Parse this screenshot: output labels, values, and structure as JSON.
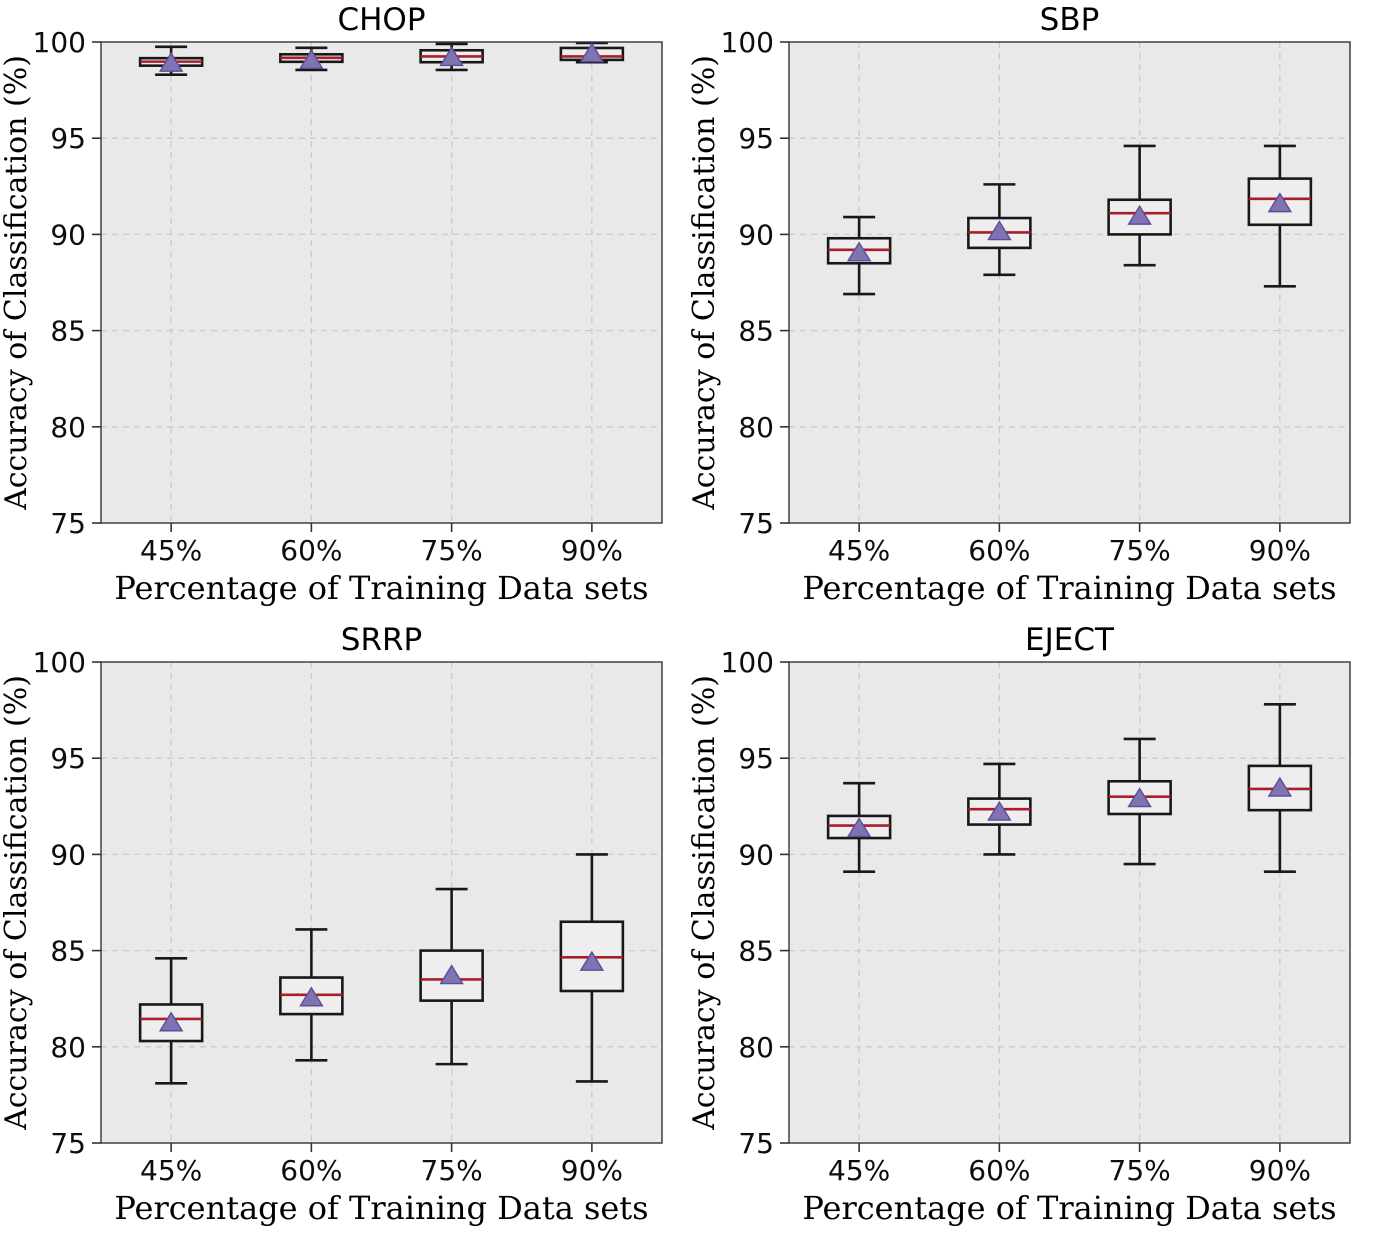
{
  "figure": {
    "kind": "boxplot-grid",
    "rows": 2,
    "cols": 2
  },
  "colors": {
    "page_bg": "#ffffff",
    "plot_bg": "#e9e9ea",
    "box_fill": "#eeeeef",
    "grid": "#cbcbcb",
    "frame": "#333333",
    "box_edge": "#181818",
    "median": "#a91e2a",
    "mean_fill": "#8172b2",
    "mean_edge": "#5d4e96",
    "tick_text": "#0d0d0d",
    "label_text": "#000000"
  },
  "chart_data": [
    {
      "type": "box",
      "title": "CHOP",
      "xlabel": "Percentage of Training Data sets",
      "ylabel": "Accuracy of Classification (%)",
      "categories": [
        "45%",
        "60%",
        "75%",
        "90%"
      ],
      "ylim": [
        75,
        100
      ],
      "yticks": [
        75,
        80,
        85,
        90,
        95,
        100
      ],
      "ytick_labels": [
        "75",
        "80",
        "85",
        "90",
        "95",
        "100"
      ],
      "grid": true,
      "legend": "none",
      "boxes": [
        {
          "label": "45%",
          "whislo": 98.3,
          "q1": 98.77,
          "med": 98.98,
          "q3": 99.16,
          "whishi": 99.75,
          "mean": 98.9
        },
        {
          "label": "60%",
          "whislo": 98.55,
          "q1": 98.97,
          "med": 99.18,
          "q3": 99.36,
          "whishi": 99.7,
          "mean": 99.05
        },
        {
          "label": "75%",
          "whislo": 98.55,
          "q1": 98.95,
          "med": 99.25,
          "q3": 99.57,
          "whishi": 99.9,
          "mean": 99.2
        },
        {
          "label": "90%",
          "whislo": 98.95,
          "q1": 99.07,
          "med": 99.25,
          "q3": 99.69,
          "whishi": 99.95,
          "mean": 99.4
        }
      ]
    },
    {
      "type": "box",
      "title": "SBP",
      "xlabel": "Percentage of Training Data sets",
      "ylabel": "Accuracy of Classification (%)",
      "categories": [
        "45%",
        "60%",
        "75%",
        "90%"
      ],
      "ylim": [
        75,
        100
      ],
      "yticks": [
        75,
        80,
        85,
        90,
        95,
        100
      ],
      "ytick_labels": [
        "75",
        "80",
        "85",
        "90",
        "95",
        "100"
      ],
      "grid": true,
      "legend": "none",
      "boxes": [
        {
          "label": "45%",
          "whislo": 86.9,
          "q1": 88.5,
          "med": 89.2,
          "q3": 89.8,
          "whishi": 90.9,
          "mean": 89.05
        },
        {
          "label": "60%",
          "whislo": 87.9,
          "q1": 89.3,
          "med": 90.1,
          "q3": 90.85,
          "whishi": 92.6,
          "mean": 90.15
        },
        {
          "label": "75%",
          "whislo": 88.4,
          "q1": 90.0,
          "med": 91.1,
          "q3": 91.8,
          "whishi": 94.6,
          "mean": 90.95
        },
        {
          "label": "90%",
          "whislo": 87.3,
          "q1": 90.5,
          "med": 91.85,
          "q3": 92.9,
          "whishi": 94.6,
          "mean": 91.6
        }
      ]
    },
    {
      "type": "box",
      "title": "SRRP",
      "xlabel": "Percentage of Training Data sets",
      "ylabel": "Accuracy of Classification (%)",
      "categories": [
        "45%",
        "60%",
        "75%",
        "90%"
      ],
      "ylim": [
        75,
        100
      ],
      "yticks": [
        75,
        80,
        85,
        90,
        95,
        100
      ],
      "ytick_labels": [
        "75",
        "80",
        "85",
        "90",
        "95",
        "100"
      ],
      "grid": true,
      "legend": "none",
      "boxes": [
        {
          "label": "45%",
          "whislo": 78.1,
          "q1": 80.3,
          "med": 81.45,
          "q3": 82.2,
          "whishi": 84.6,
          "mean": 81.25
        },
        {
          "label": "60%",
          "whislo": 79.3,
          "q1": 81.7,
          "med": 82.7,
          "q3": 83.6,
          "whishi": 86.1,
          "mean": 82.55
        },
        {
          "label": "75%",
          "whislo": 79.1,
          "q1": 82.4,
          "med": 83.5,
          "q3": 85.0,
          "whishi": 88.2,
          "mean": 83.7
        },
        {
          "label": "90%",
          "whislo": 78.2,
          "q1": 82.9,
          "med": 84.65,
          "q3": 86.5,
          "whishi": 90.0,
          "mean": 84.4
        }
      ]
    },
    {
      "type": "box",
      "title": "EJECT",
      "xlabel": "Percentage of Training Data sets",
      "ylabel": "Accuracy of Classification (%)",
      "categories": [
        "45%",
        "60%",
        "75%",
        "90%"
      ],
      "ylim": [
        75,
        100
      ],
      "yticks": [
        75,
        80,
        85,
        90,
        95,
        100
      ],
      "ytick_labels": [
        "75",
        "80",
        "85",
        "90",
        "95",
        "100"
      ],
      "grid": true,
      "legend": "none",
      "boxes": [
        {
          "label": "45%",
          "whislo": 89.1,
          "q1": 90.85,
          "med": 91.5,
          "q3": 92.0,
          "whishi": 93.7,
          "mean": 91.35
        },
        {
          "label": "60%",
          "whislo": 90.0,
          "q1": 91.55,
          "med": 92.35,
          "q3": 92.9,
          "whishi": 94.7,
          "mean": 92.2
        },
        {
          "label": "75%",
          "whislo": 89.5,
          "q1": 92.1,
          "med": 93.0,
          "q3": 93.8,
          "whishi": 96.0,
          "mean": 92.9
        },
        {
          "label": "90%",
          "whislo": 89.1,
          "q1": 92.3,
          "med": 93.4,
          "q3": 94.6,
          "whishi": 97.8,
          "mean": 93.45
        }
      ]
    }
  ]
}
